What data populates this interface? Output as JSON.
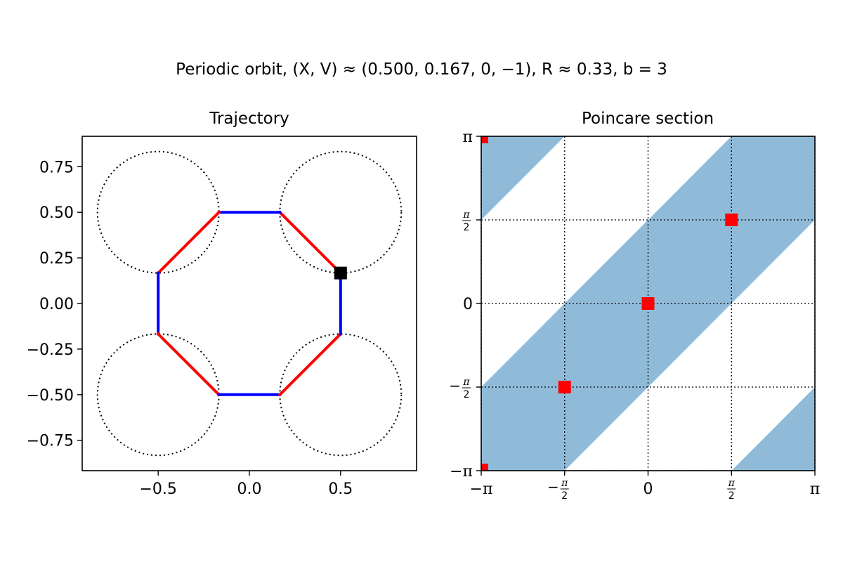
{
  "suptitle": "Periodic orbit, (X, V) ≈ (0.500, 0.167, 0, −1), R ≈ 0.33, b = 3",
  "chart_data": [
    {
      "type": "line",
      "title": "Trajectory",
      "xlabel": "",
      "ylabel": "",
      "xlim": [
        -0.9167,
        0.9167
      ],
      "ylim": [
        -0.9167,
        0.9167
      ],
      "xticks": [
        {
          "value": -0.5,
          "label": "−0.5"
        },
        {
          "value": 0.0,
          "label": "0.0"
        },
        {
          "value": 0.5,
          "label": "0.5"
        }
      ],
      "yticks": [
        {
          "value": 0.75,
          "label": "0.75"
        },
        {
          "value": 0.5,
          "label": "0.50"
        },
        {
          "value": 0.25,
          "label": "0.25"
        },
        {
          "value": 0.0,
          "label": "0.00"
        },
        {
          "value": -0.25,
          "label": "−0.25"
        },
        {
          "value": -0.5,
          "label": "−0.50"
        },
        {
          "value": -0.75,
          "label": "−0.75"
        }
      ],
      "obstacles": {
        "radius": 0.333,
        "centers": [
          [
            -0.5,
            0.5
          ],
          [
            0.5,
            0.5
          ],
          [
            -0.5,
            -0.5
          ],
          [
            0.5,
            -0.5
          ]
        ],
        "style": "dotted",
        "color": "#000000"
      },
      "segments": [
        {
          "color": "#ff0000",
          "points": [
            [
              0.5,
              0.167
            ],
            [
              0.167,
              0.5
            ]
          ]
        },
        {
          "color": "#0000ff",
          "points": [
            [
              0.167,
              0.5
            ],
            [
              -0.167,
              0.5
            ]
          ]
        },
        {
          "color": "#ff0000",
          "points": [
            [
              -0.167,
              0.5
            ],
            [
              -0.5,
              0.167
            ]
          ]
        },
        {
          "color": "#0000ff",
          "points": [
            [
              -0.5,
              0.167
            ],
            [
              -0.5,
              -0.167
            ]
          ]
        },
        {
          "color": "#ff0000",
          "points": [
            [
              -0.5,
              -0.167
            ],
            [
              -0.167,
              -0.5
            ]
          ]
        },
        {
          "color": "#0000ff",
          "points": [
            [
              -0.167,
              -0.5
            ],
            [
              0.167,
              -0.5
            ]
          ]
        },
        {
          "color": "#ff0000",
          "points": [
            [
              0.167,
              -0.5
            ],
            [
              0.5,
              -0.167
            ]
          ]
        },
        {
          "color": "#0000ff",
          "points": [
            [
              0.5,
              -0.167
            ],
            [
              0.5,
              0.167
            ]
          ]
        }
      ],
      "start_marker": {
        "x": 0.5,
        "y": 0.167,
        "color": "#000000",
        "shape": "square"
      }
    },
    {
      "type": "scatter",
      "title": "Poincare section",
      "xlabel": "",
      "ylabel": "",
      "xlim": [
        -3.1416,
        3.1416
      ],
      "ylim": [
        -3.1416,
        3.1416
      ],
      "grid": "dotted",
      "xticks": [
        {
          "value": -3.1416,
          "label": "−π",
          "kind": "plain"
        },
        {
          "value": -1.5708,
          "label": "−π/2",
          "kind": "frac",
          "sign": "−",
          "num": "π",
          "den": "2"
        },
        {
          "value": 0,
          "label": "0",
          "kind": "plain"
        },
        {
          "value": 1.5708,
          "label": "π/2",
          "kind": "frac",
          "sign": "",
          "num": "π",
          "den": "2"
        },
        {
          "value": 3.1416,
          "label": "π",
          "kind": "plain"
        }
      ],
      "yticks": [
        {
          "value": 3.1416,
          "label": "π",
          "kind": "plain"
        },
        {
          "value": 1.5708,
          "label": "π/2",
          "kind": "frac",
          "sign": "",
          "num": "π",
          "den": "2"
        },
        {
          "value": 0,
          "label": "0",
          "kind": "plain"
        },
        {
          "value": -1.5708,
          "label": "−π/2",
          "kind": "frac",
          "sign": "−",
          "num": "π",
          "den": "2"
        },
        {
          "value": -3.1416,
          "label": "−π",
          "kind": "plain"
        }
      ],
      "regions": {
        "color": "#1f77b4",
        "opacity": 0.5,
        "polygons": [
          [
            [
              -3.1416,
              3.1416
            ],
            [
              -1.5708,
              3.1416
            ],
            [
              -3.1416,
              1.5708
            ]
          ],
          [
            [
              -3.1416,
              -1.5708
            ],
            [
              1.5708,
              3.1416
            ],
            [
              3.1416,
              3.1416
            ],
            [
              3.1416,
              1.5708
            ],
            [
              -1.5708,
              -3.1416
            ],
            [
              -3.1416,
              -3.1416
            ]
          ],
          [
            [
              1.5708,
              -3.1416
            ],
            [
              3.1416,
              -3.1416
            ],
            [
              3.1416,
              -1.5708
            ]
          ]
        ]
      },
      "points": [
        {
          "x": -1.5708,
          "y": -1.5708,
          "size": "large"
        },
        {
          "x": 0,
          "y": 0,
          "size": "large"
        },
        {
          "x": 1.5708,
          "y": 1.5708,
          "size": "large"
        },
        {
          "x": -3.1416,
          "y": 3.1416,
          "size": "small"
        },
        {
          "x": -3.1416,
          "y": -3.1416,
          "size": "small"
        }
      ],
      "marker_color": "#ff0000"
    }
  ]
}
